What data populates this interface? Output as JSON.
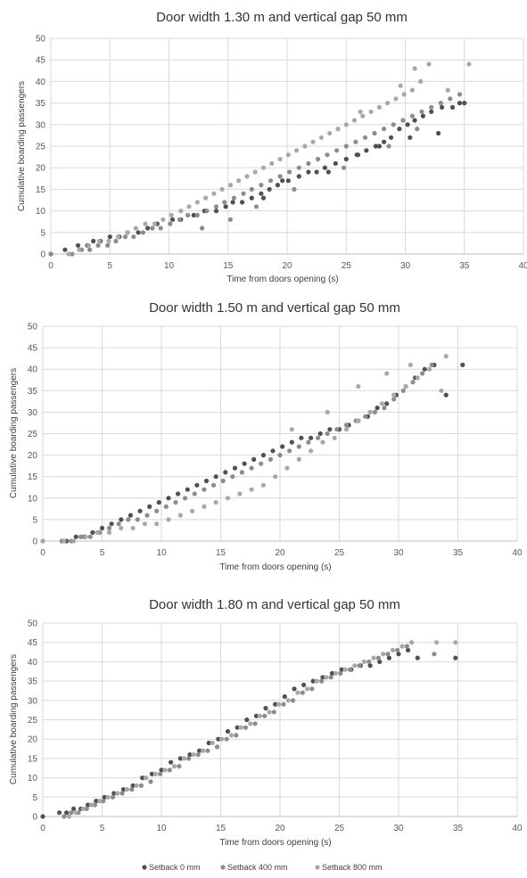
{
  "legend": [
    {
      "label": "Setback 0 mm",
      "color": "#505050"
    },
    {
      "label": "Setback 400 mm",
      "color": "#8c8c8c"
    },
    {
      "label": "Setback 800 mm",
      "color": "#a8a8a8"
    }
  ],
  "chart_data": [
    {
      "type": "scatter",
      "title": "Door width 1.30 m and vertical gap 50 mm",
      "xlabel": "Time from doors opening (s)",
      "ylabel": "Cumulative boarding passengers",
      "xlim": [
        0,
        40
      ],
      "ylim": [
        0,
        50
      ],
      "xticks": [
        "0",
        "5",
        "10",
        "15",
        "20",
        "25",
        "30",
        "35",
        "40"
      ],
      "yticks": [
        "0",
        "5",
        "10",
        "15",
        "20",
        "25",
        "30",
        "35",
        "40",
        "45",
        "50"
      ],
      "grid": true,
      "series": [
        {
          "name": "Setback 0 mm",
          "color": "#505050",
          "x": [
            0,
            1.2,
            2.3,
            3.1,
            3.6,
            4.2,
            5.0,
            5.8,
            6.5,
            7.4,
            8.2,
            9.0,
            10.3,
            11.0,
            12.1,
            13.0,
            14.0,
            14.8,
            15.4,
            16.2,
            17.0,
            17.8,
            18.5,
            19.2,
            20.1,
            21.0,
            21.8,
            22.5,
            23.2,
            24.1,
            25.0,
            25.9,
            26.7,
            27.5,
            28.2,
            28.8,
            29.5,
            30.2,
            30.8,
            31.5,
            32.2,
            33.1,
            34.0,
            34.6,
            35.0,
            30.4,
            32.8,
            27.8,
            18.0,
            19.6,
            23.5,
            26.0
          ],
          "y": [
            0,
            1,
            2,
            2,
            3,
            3,
            4,
            4,
            5,
            5,
            6,
            7,
            8,
            8,
            9,
            10,
            10,
            11,
            12,
            12,
            13,
            14,
            15,
            16,
            17,
            18,
            19,
            19,
            20,
            21,
            22,
            23,
            24,
            25,
            26,
            27,
            29,
            30,
            31,
            32,
            33,
            34,
            34,
            35,
            35,
            27,
            28,
            25,
            13,
            17,
            19,
            23
          ]
        },
        {
          "name": "Setback 400 mm",
          "color": "#8c8c8c",
          "x": [
            0,
            1.8,
            2.6,
            3.3,
            4.0,
            4.8,
            5.5,
            6.3,
            7.0,
            7.8,
            8.6,
            9.3,
            10.1,
            10.9,
            11.6,
            12.4,
            13.2,
            14.0,
            14.7,
            15.5,
            16.3,
            17.0,
            17.8,
            18.6,
            19.4,
            20.2,
            21.0,
            21.8,
            22.6,
            23.4,
            24.2,
            25.0,
            25.8,
            26.6,
            27.4,
            28.2,
            29.0,
            29.8,
            30.6,
            31.4,
            32.2,
            33.0,
            33.8,
            34.6,
            12.8,
            15.2,
            17.4,
            20.6,
            24.8,
            28.6,
            31.0
          ],
          "y": [
            0,
            0,
            1,
            1,
            2,
            2,
            3,
            4,
            4,
            5,
            6,
            6,
            7,
            8,
            9,
            9,
            10,
            11,
            12,
            13,
            14,
            15,
            16,
            17,
            18,
            19,
            20,
            21,
            22,
            23,
            24,
            25,
            26,
            27,
            28,
            29,
            30,
            31,
            32,
            33,
            34,
            35,
            36,
            37,
            6,
            8,
            11,
            15,
            20,
            25,
            29
          ]
        },
        {
          "name": "Setback 800 mm",
          "color": "#a8a8a8",
          "x": [
            1.5,
            2.4,
            3.2,
            4.1,
            4.9,
            5.7,
            6.5,
            7.2,
            8.0,
            8.8,
            9.5,
            10.2,
            11.0,
            11.7,
            12.4,
            13.1,
            13.8,
            14.5,
            15.2,
            15.9,
            16.6,
            17.3,
            18.0,
            18.7,
            19.4,
            20.1,
            20.8,
            21.5,
            22.2,
            22.9,
            23.6,
            24.3,
            25.0,
            25.7,
            26.4,
            27.1,
            27.8,
            28.5,
            29.2,
            29.9,
            30.6,
            31.3,
            32.0,
            33.6,
            35.4,
            30.8,
            29.6,
            26.2
          ],
          "y": [
            0,
            1,
            2,
            3,
            3,
            4,
            5,
            6,
            7,
            7,
            8,
            9,
            10,
            11,
            12,
            13,
            14,
            15,
            16,
            17,
            18,
            19,
            20,
            21,
            22,
            23,
            24,
            25,
            26,
            27,
            28,
            29,
            30,
            31,
            32,
            33,
            34,
            35,
            36,
            37,
            38,
            40,
            44,
            38,
            44,
            43,
            39,
            33
          ]
        }
      ]
    },
    {
      "type": "scatter",
      "title": "Door width 1.50 m and vertical gap 50 mm",
      "xlabel": "Time from doors opening (s)",
      "ylabel": "Cumulative boarding passengers",
      "xlim": [
        0,
        40
      ],
      "ylim": [
        0,
        50
      ],
      "xticks": [
        "0",
        "5",
        "10",
        "15",
        "20",
        "25",
        "30",
        "35",
        "40"
      ],
      "yticks": [
        "0",
        "5",
        "10",
        "15",
        "20",
        "25",
        "30",
        "35",
        "40",
        "45",
        "50"
      ],
      "grid": true,
      "series": [
        {
          "name": "Setback 0 mm",
          "color": "#505050",
          "x": [
            0,
            2.0,
            2.8,
            3.5,
            4.2,
            5.0,
            5.8,
            6.6,
            7.4,
            8.2,
            9.0,
            9.8,
            10.6,
            11.4,
            12.2,
            13.0,
            13.8,
            14.6,
            15.4,
            16.2,
            17.0,
            17.8,
            18.6,
            19.4,
            20.2,
            21.0,
            21.8,
            22.6,
            23.4,
            24.2,
            25.0,
            25.8,
            26.6,
            27.4,
            28.2,
            29.0,
            29.8,
            30.6,
            31.4,
            32.2,
            33.0,
            34.0,
            35.4
          ],
          "y": [
            0,
            0,
            1,
            1,
            2,
            3,
            4,
            5,
            6,
            7,
            8,
            9,
            10,
            11,
            12,
            13,
            14,
            15,
            16,
            17,
            18,
            19,
            20,
            21,
            22,
            23,
            24,
            24,
            25,
            26,
            26,
            27,
            28,
            29,
            31,
            32,
            34,
            36,
            38,
            40,
            41,
            34,
            41
          ]
        },
        {
          "name": "Setback 400 mm",
          "color": "#8c8c8c",
          "x": [
            1.6,
            2.4,
            3.2,
            4.0,
            4.8,
            5.6,
            6.4,
            7.2,
            8.0,
            8.8,
            9.6,
            10.4,
            11.2,
            12.0,
            12.8,
            13.6,
            14.4,
            15.2,
            16.0,
            16.8,
            17.6,
            18.4,
            19.2,
            20.0,
            20.8,
            21.6,
            22.4,
            23.2,
            24.0,
            24.8,
            25.6,
            26.4,
            27.2,
            28.0,
            28.8,
            29.6,
            30.4,
            31.2,
            32.0,
            32.8
          ],
          "y": [
            0,
            0,
            1,
            1,
            2,
            3,
            4,
            5,
            5,
            6,
            7,
            8,
            9,
            10,
            11,
            12,
            13,
            14,
            15,
            16,
            17,
            18,
            19,
            20,
            21,
            22,
            23,
            24,
            25,
            26,
            27,
            28,
            29,
            30,
            31,
            33,
            35,
            37,
            39,
            41
          ]
        },
        {
          "name": "Setback 800 mm",
          "color": "#a8a8a8",
          "x": [
            0,
            1.8,
            2.6,
            3.6,
            4.6,
            5.6,
            6.6,
            7.6,
            8.6,
            9.6,
            10.6,
            11.6,
            12.6,
            13.6,
            14.6,
            15.6,
            16.6,
            17.6,
            18.6,
            19.6,
            20.6,
            21.6,
            22.6,
            23.6,
            24.6,
            25.6,
            26.6,
            27.6,
            28.6,
            29.6,
            30.6,
            31.6,
            32.6,
            33.6,
            34.0,
            31.0,
            29.0,
            26.6,
            24.0,
            21.0
          ],
          "y": [
            0,
            0,
            0,
            1,
            2,
            2,
            3,
            3,
            4,
            4,
            5,
            6,
            7,
            8,
            9,
            10,
            11,
            12,
            13,
            15,
            17,
            19,
            21,
            23,
            24,
            26,
            28,
            30,
            32,
            34,
            36,
            38,
            40,
            35,
            43,
            41,
            39,
            36,
            30,
            26
          ]
        }
      ]
    },
    {
      "type": "scatter",
      "title": "Door width 1.80 m and vertical gap 50 mm",
      "xlabel": "Time from doors opening (s)",
      "ylabel": "Cumulative boarding passengers",
      "xlim": [
        0,
        40
      ],
      "ylim": [
        0,
        50
      ],
      "xticks": [
        "0",
        "5",
        "10",
        "15",
        "20",
        "25",
        "30",
        "35",
        "40"
      ],
      "yticks": [
        "0",
        "5",
        "10",
        "15",
        "20",
        "25",
        "30",
        "35",
        "40",
        "45",
        "50"
      ],
      "grid": true,
      "series": [
        {
          "name": "Setback 0 mm",
          "color": "#505050",
          "x": [
            0,
            1.4,
            2.0,
            2.6,
            3.2,
            3.8,
            4.5,
            5.2,
            6.0,
            6.8,
            7.6,
            8.4,
            9.2,
            10.0,
            10.8,
            11.6,
            12.4,
            13.2,
            14.0,
            14.8,
            15.6,
            16.4,
            17.2,
            18.0,
            18.8,
            19.6,
            20.4,
            21.2,
            22.0,
            22.8,
            23.6,
            24.4,
            25.2,
            26.0,
            26.8,
            27.6,
            28.4,
            29.2,
            30.0,
            30.8,
            31.6,
            34.8
          ],
          "y": [
            0,
            1,
            1,
            2,
            2,
            3,
            4,
            5,
            6,
            7,
            8,
            10,
            11,
            12,
            14,
            15,
            16,
            17,
            19,
            20,
            22,
            23,
            25,
            26,
            28,
            29,
            31,
            33,
            34,
            35,
            36,
            37,
            38,
            38,
            39,
            39,
            40,
            41,
            42,
            43,
            41,
            41
          ]
        },
        {
          "name": "Setback 400 mm",
          "color": "#8c8c8c",
          "x": [
            1.8,
            2.4,
            3.0,
            3.7,
            4.4,
            5.1,
            5.9,
            6.7,
            7.5,
            8.3,
            9.1,
            9.9,
            10.7,
            11.5,
            12.3,
            13.1,
            13.9,
            14.7,
            15.5,
            16.3,
            17.1,
            17.9,
            18.7,
            19.5,
            20.3,
            21.1,
            21.9,
            22.7,
            23.5,
            24.3,
            25.1,
            25.9,
            26.7,
            27.5,
            28.3,
            29.1,
            29.9,
            30.7,
            33.0
          ],
          "y": [
            0,
            1,
            1,
            2,
            3,
            4,
            5,
            6,
            7,
            8,
            9,
            11,
            12,
            13,
            15,
            16,
            17,
            18,
            20,
            21,
            23,
            24,
            26,
            27,
            29,
            30,
            32,
            33,
            35,
            36,
            37,
            38,
            39,
            40,
            41,
            42,
            43,
            44,
            42
          ]
        },
        {
          "name": "Setback 800 mm",
          "color": "#a8a8a8",
          "x": [
            2.2,
            2.8,
            3.4,
            4.1,
            4.8,
            5.5,
            6.3,
            7.1,
            7.9,
            8.7,
            9.5,
            10.3,
            11.1,
            11.9,
            12.7,
            13.5,
            14.3,
            15.1,
            15.9,
            16.7,
            17.5,
            18.3,
            19.1,
            19.9,
            20.7,
            21.5,
            22.3,
            23.1,
            23.9,
            24.7,
            25.5,
            26.3,
            27.1,
            27.9,
            28.7,
            29.5,
            30.3,
            31.1,
            33.2,
            34.8
          ],
          "y": [
            0,
            1,
            2,
            3,
            4,
            5,
            6,
            7,
            8,
            10,
            11,
            12,
            13,
            15,
            16,
            17,
            19,
            20,
            21,
            23,
            24,
            26,
            27,
            29,
            30,
            32,
            33,
            35,
            36,
            37,
            38,
            39,
            40,
            41,
            42,
            43,
            44,
            45,
            45,
            45
          ]
        }
      ]
    }
  ]
}
